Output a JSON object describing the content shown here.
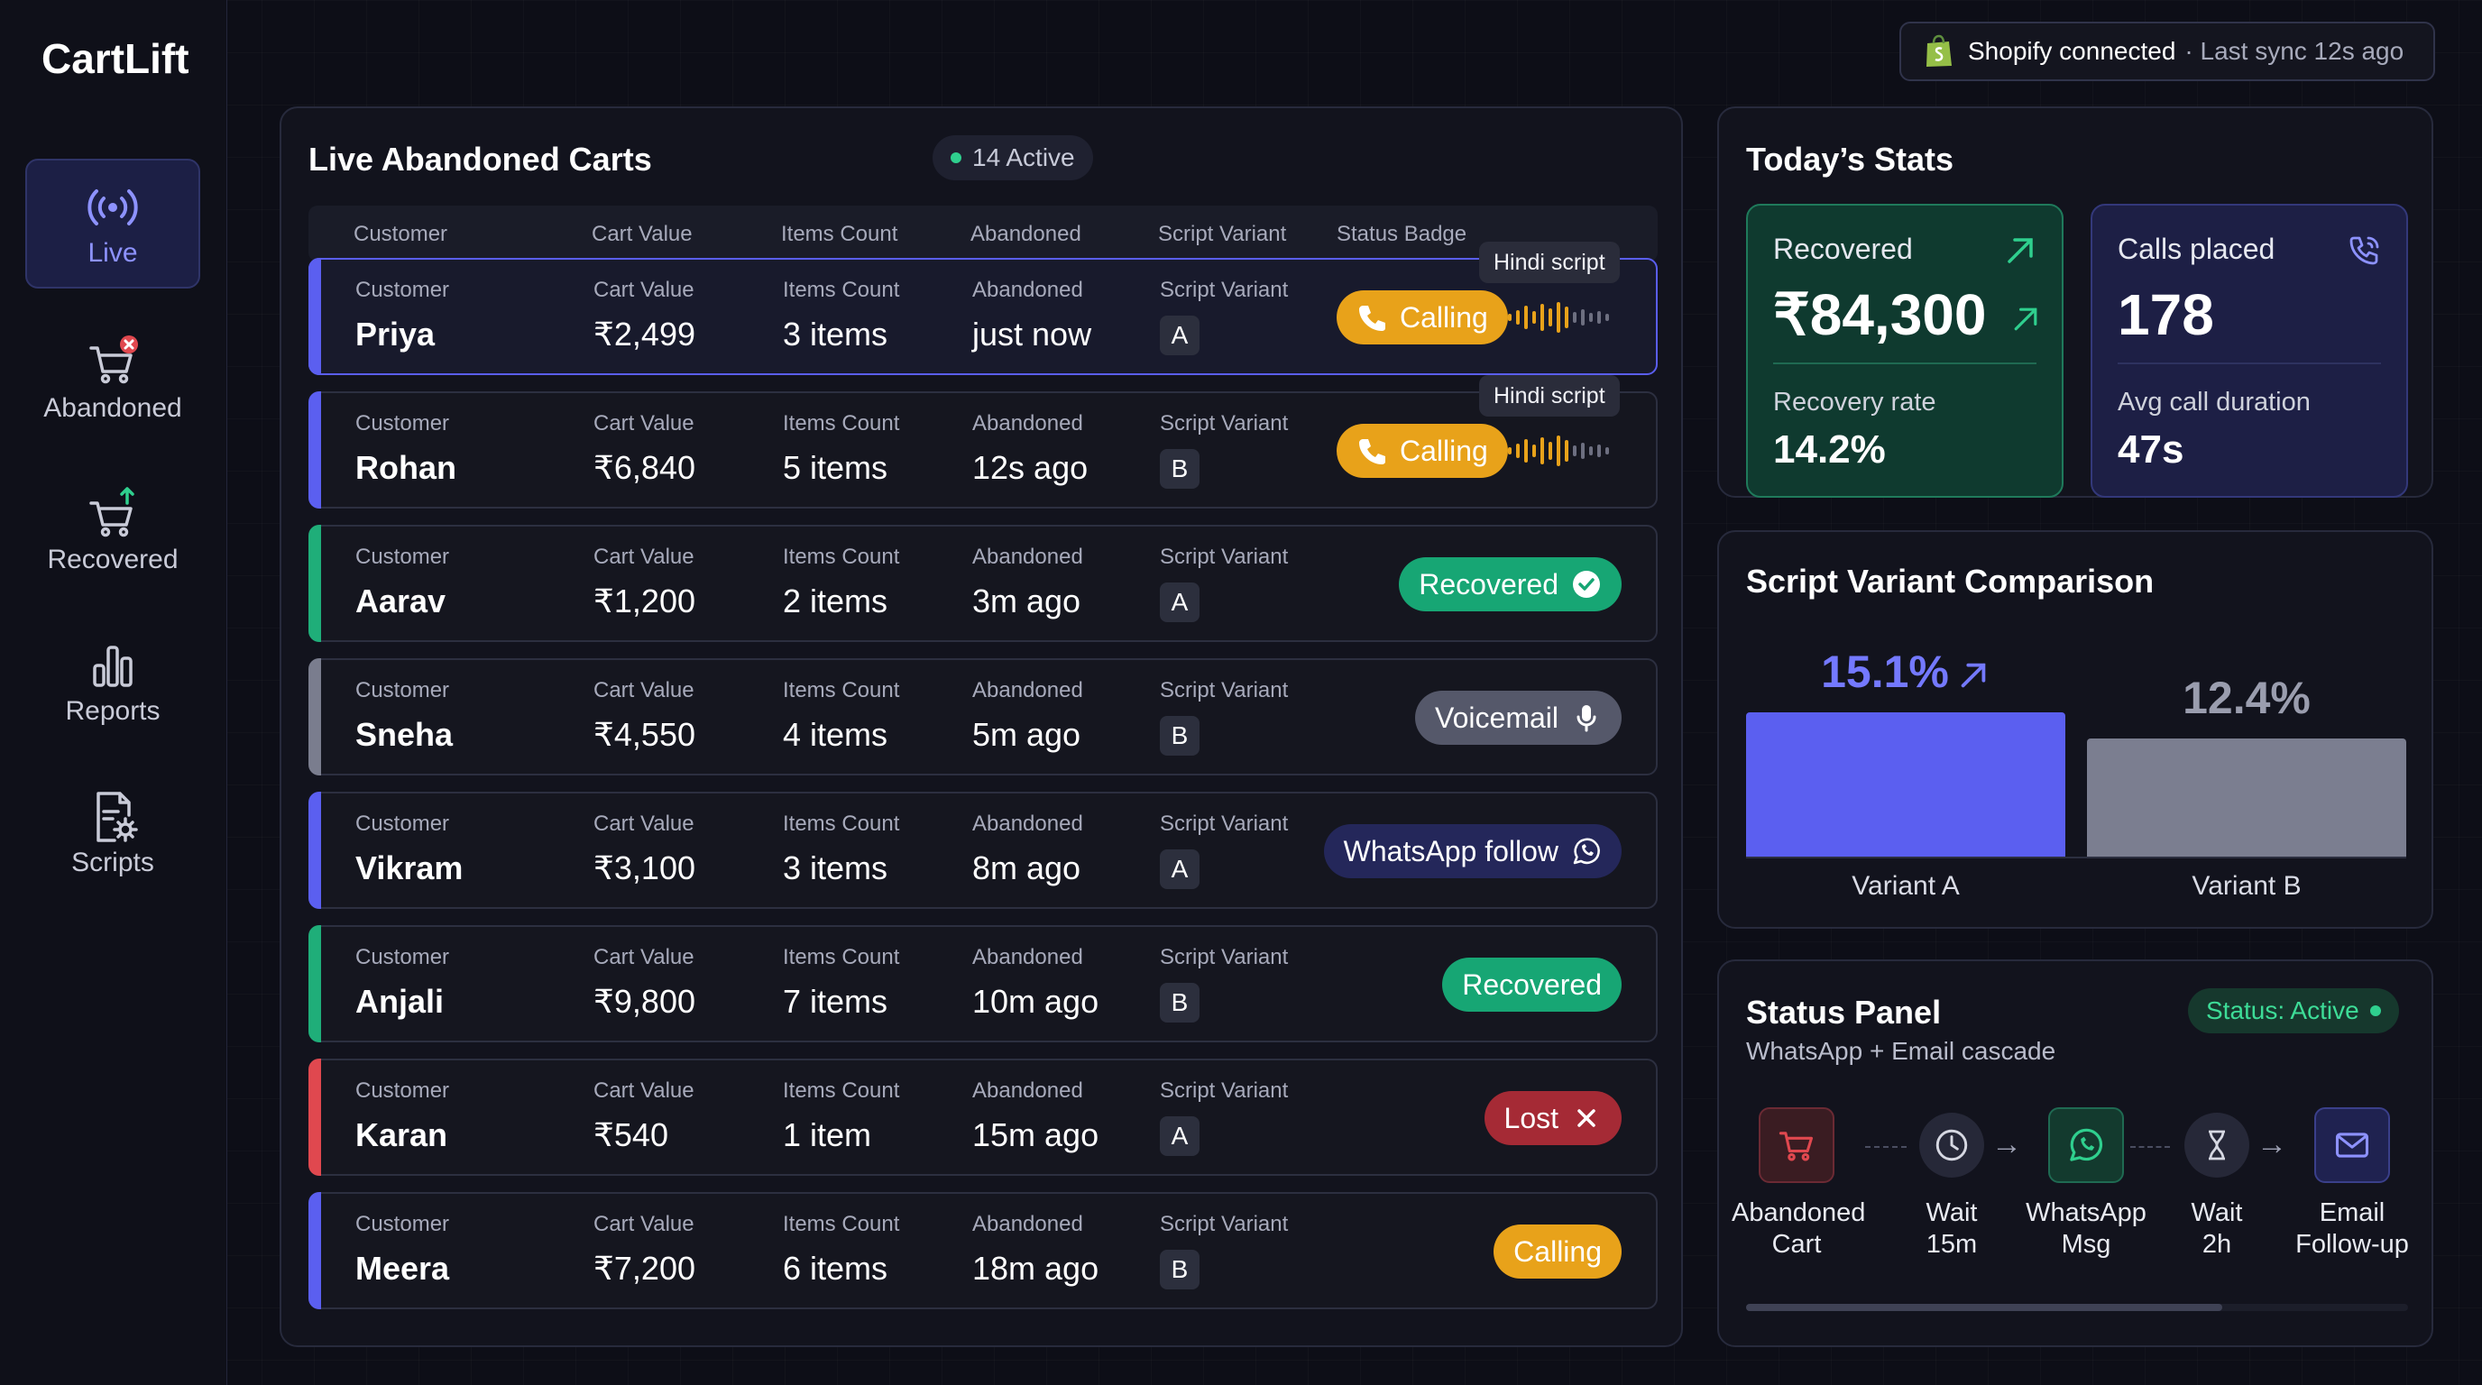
{
  "app": {
    "brand": "CartLift"
  },
  "sidebar": {
    "items": [
      {
        "label": "Live",
        "icon": "broadcast-icon",
        "active": true
      },
      {
        "label": "Abandoned",
        "icon": "cart-alert-icon",
        "active": false
      },
      {
        "label": "Recovered",
        "icon": "cart-up-icon",
        "active": false
      },
      {
        "label": "Reports",
        "icon": "bar-chart-icon",
        "active": false
      },
      {
        "label": "Scripts",
        "icon": "script-settings-icon",
        "active": false
      }
    ]
  },
  "shopify": {
    "connected": "Shopify connected",
    "sync": "· Last sync 12s ago"
  },
  "live": {
    "title": "Live Abandoned Carts",
    "active": "14 Active",
    "headers": [
      "Customer",
      "Cart Value",
      "Items Count",
      "Abandoned",
      "Script Variant",
      "Status Badge"
    ],
    "rows": [
      {
        "customer": "Priya",
        "value": "₹2,499",
        "items": "3 items",
        "abandoned": "just now",
        "variant": "A",
        "status": "Calling",
        "status_type": "calling",
        "tooltip": "Hindi script",
        "accent": "#5b5ff0"
      },
      {
        "customer": "Rohan",
        "value": "₹6,840",
        "items": "5 items",
        "abandoned": "12s ago",
        "variant": "B",
        "status": "Calling",
        "status_type": "calling",
        "tooltip": "Hindi script",
        "accent": "#5b5ff0"
      },
      {
        "customer": "Aarav",
        "value": "₹1,200",
        "items": "2 items",
        "abandoned": "3m ago",
        "variant": "A",
        "status": "Recovered",
        "status_type": "recovered",
        "accent": "#1fae79"
      },
      {
        "customer": "Sneha",
        "value": "₹4,550",
        "items": "4 items",
        "abandoned": "5m ago",
        "variant": "B",
        "status": "Voicemail",
        "status_type": "voicemail",
        "accent": "#7a7d8e"
      },
      {
        "customer": "Vikram",
        "value": "₹3,100",
        "items": "3 items",
        "abandoned": "8m ago",
        "variant": "A",
        "status": "WhatsApp follow",
        "status_type": "whatsapp",
        "accent": "#5b5ff0"
      },
      {
        "customer": "Anjali",
        "value": "₹9,800",
        "items": "7 items",
        "abandoned": "10m ago",
        "variant": "B",
        "status": "Recovered",
        "status_type": "recovered-plain",
        "accent": "#1fae79"
      },
      {
        "customer": "Karan",
        "value": "₹540",
        "items": "1 item",
        "abandoned": "15m ago",
        "variant": "A",
        "status": "Lost",
        "status_type": "lost",
        "accent": "#e0484f"
      },
      {
        "customer": "Meera",
        "value": "₹7,200",
        "items": "6 items",
        "abandoned": "18m ago",
        "variant": "B",
        "status": "Calling",
        "status_type": "calling-plain",
        "accent": "#5b5ff0"
      }
    ]
  },
  "stats": {
    "title": "Today’s Stats",
    "recovered_label": "Recovered",
    "recovered_value": "₹84,300",
    "recovery_rate_label": "Recovery rate",
    "recovery_rate": "14.2%",
    "calls_label": "Calls placed",
    "calls_value": "178",
    "avg_label": "Avg call duration",
    "avg_value": "47s"
  },
  "comparison": {
    "title": "Script Variant Comparison",
    "chart_data": {
      "type": "bar",
      "categories": [
        "Variant A",
        "Variant B"
      ],
      "values": [
        15.1,
        12.4
      ],
      "labels": [
        "15.1%",
        "12.4%"
      ],
      "colors": [
        "#5b5ff0",
        "#7b7e90"
      ]
    }
  },
  "status_panel": {
    "title": "Status Panel",
    "subtitle": "WhatsApp + Email cascade",
    "status": "Status: Active",
    "steps": [
      {
        "line1": "Abandoned",
        "line2": "Cart"
      },
      {
        "line1": "Wait",
        "line2": "15m"
      },
      {
        "line1": "WhatsApp",
        "line2": "Msg"
      },
      {
        "line1": "Wait",
        "line2": "2h"
      },
      {
        "line1": "Email",
        "line2": "Follow-up"
      }
    ],
    "progress": 0.72
  }
}
